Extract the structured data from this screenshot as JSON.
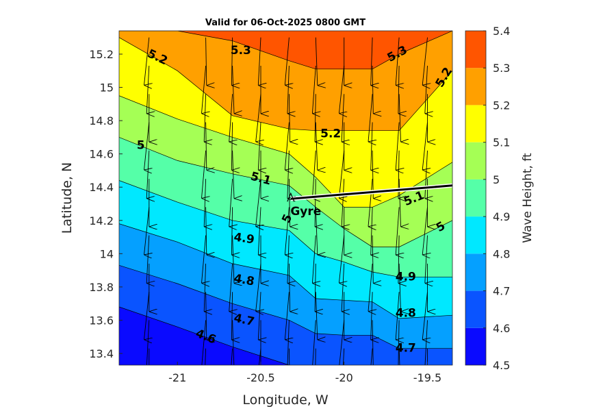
{
  "chart_data": {
    "type": "contour",
    "title": "Valid for 06-Oct-2025 0800 GMT",
    "xlabel": "Longitude, W",
    "ylabel": "Latitude, N",
    "xlim": [
      -21.35,
      -19.35
    ],
    "ylim": [
      13.33,
      15.34
    ],
    "xticks": [
      -21,
      -20.5,
      -20,
      -19.5
    ],
    "xtick_labels": [
      "-21",
      "-20.5",
      "-20",
      "-19.5"
    ],
    "yticks": [
      13.4,
      13.6,
      13.8,
      14,
      14.2,
      14.4,
      14.6,
      14.8,
      15,
      15.2
    ],
    "ytick_labels": [
      "13.4",
      "13.6",
      "13.8",
      "14",
      "14.2",
      "14.4",
      "14.6",
      "14.8",
      "15",
      "15.2"
    ],
    "colorbar": {
      "label": "Wave Height, ft",
      "levels": [
        4.5,
        4.6,
        4.7,
        4.8,
        4.9,
        5.0,
        5.1,
        5.2,
        5.3,
        5.4
      ],
      "tick_labels": [
        "4.5",
        "4.6",
        "4.7",
        "4.8",
        "4.9",
        "5",
        "5.1",
        "5.2",
        "5.3",
        "5.4"
      ],
      "colors": [
        "#0a0aff",
        "#0a54ff",
        "#05a0ff",
        "#00e8ff",
        "#55ffa8",
        "#a5ff55",
        "#ffff00",
        "#ffa000",
        "#ff5500"
      ]
    },
    "contour_x": [
      -21.35,
      -21.0,
      -20.67,
      -20.33,
      -20.17,
      -20.0,
      -19.83,
      -19.67,
      -19.35
    ],
    "contour_lines": [
      {
        "level": 4.6,
        "y": [
          13.68,
          13.56,
          13.44,
          13.33,
          null,
          null,
          null,
          null,
          null
        ]
      },
      {
        "level": 4.7,
        "y": [
          13.93,
          13.82,
          13.7,
          13.6,
          13.52,
          13.51,
          13.51,
          13.43,
          13.43
        ]
      },
      {
        "level": 4.8,
        "y": [
          14.18,
          14.07,
          13.94,
          13.87,
          13.73,
          13.72,
          13.71,
          13.61,
          13.63
        ]
      },
      {
        "level": 4.9,
        "y": [
          14.44,
          14.31,
          14.2,
          14.14,
          14.0,
          13.95,
          13.89,
          13.86,
          13.86
        ]
      },
      {
        "level": 5.0,
        "y": [
          14.7,
          14.56,
          14.48,
          14.41,
          14.28,
          14.15,
          14.04,
          14.04,
          14.2
        ]
      },
      {
        "level": 5.1,
        "y": [
          14.95,
          14.81,
          14.7,
          14.6,
          14.46,
          14.28,
          14.28,
          14.35,
          14.55
        ]
      },
      {
        "level": 5.2,
        "y": [
          15.3,
          15.1,
          14.83,
          14.75,
          14.74,
          14.74,
          14.74,
          14.74,
          15.1
        ]
      },
      {
        "level": 5.3,
        "y": [
          15.34,
          15.34,
          15.28,
          15.16,
          15.11,
          15.11,
          15.11,
          15.2,
          15.34
        ]
      }
    ],
    "contour_labels": [
      {
        "text": "5.3",
        "x": -20.62,
        "y": 15.22,
        "angle": 0
      },
      {
        "text": "5.3",
        "x": -19.68,
        "y": 15.2,
        "angle": -28
      },
      {
        "text": "5.2",
        "x": -21.12,
        "y": 15.18,
        "angle": 25
      },
      {
        "text": "5.2",
        "x": -19.4,
        "y": 15.06,
        "angle": -60
      },
      {
        "text": "5.2",
        "x": -20.08,
        "y": 14.72,
        "angle": 0
      },
      {
        "text": "5",
        "x": -21.22,
        "y": 14.65,
        "angle": 0
      },
      {
        "text": "5.1",
        "x": -20.5,
        "y": 14.45,
        "angle": 15
      },
      {
        "text": "5.1",
        "x": -19.58,
        "y": 14.33,
        "angle": -22
      },
      {
        "text": "5",
        "x": -20.34,
        "y": 14.21,
        "angle": -65
      },
      {
        "text": "5",
        "x": -19.42,
        "y": 14.16,
        "angle": -30
      },
      {
        "text": "4.9",
        "x": -20.6,
        "y": 14.09,
        "angle": 8
      },
      {
        "text": "4.9",
        "x": -19.63,
        "y": 13.86,
        "angle": 0
      },
      {
        "text": "4.8",
        "x": -20.6,
        "y": 13.84,
        "angle": 10
      },
      {
        "text": "4.8",
        "x": -19.63,
        "y": 13.64,
        "angle": 0
      },
      {
        "text": "4.7",
        "x": -20.6,
        "y": 13.6,
        "angle": 12
      },
      {
        "text": "4.7",
        "x": -19.63,
        "y": 13.43,
        "angle": 0
      },
      {
        "text": "4.6",
        "x": -20.83,
        "y": 13.5,
        "angle": 22
      }
    ],
    "vectors": {
      "x": [
        -21.17,
        -20.83,
        -20.67,
        -20.5,
        -20.33,
        -20.17,
        -20.0,
        -19.83,
        -19.67,
        -19.5
      ],
      "y": [
        15.3,
        15.13,
        14.96,
        14.79,
        14.62,
        14.45,
        14.28,
        14.11,
        13.94,
        13.77,
        13.6,
        13.43
      ],
      "direction_from_deg": 0,
      "style": "thin black arrows pointing south"
    },
    "track": {
      "label": "Gyre",
      "points": [
        [
          -20.32,
          14.33
        ],
        [
          -19.35,
          14.41
        ]
      ],
      "color": "#000000"
    }
  }
}
